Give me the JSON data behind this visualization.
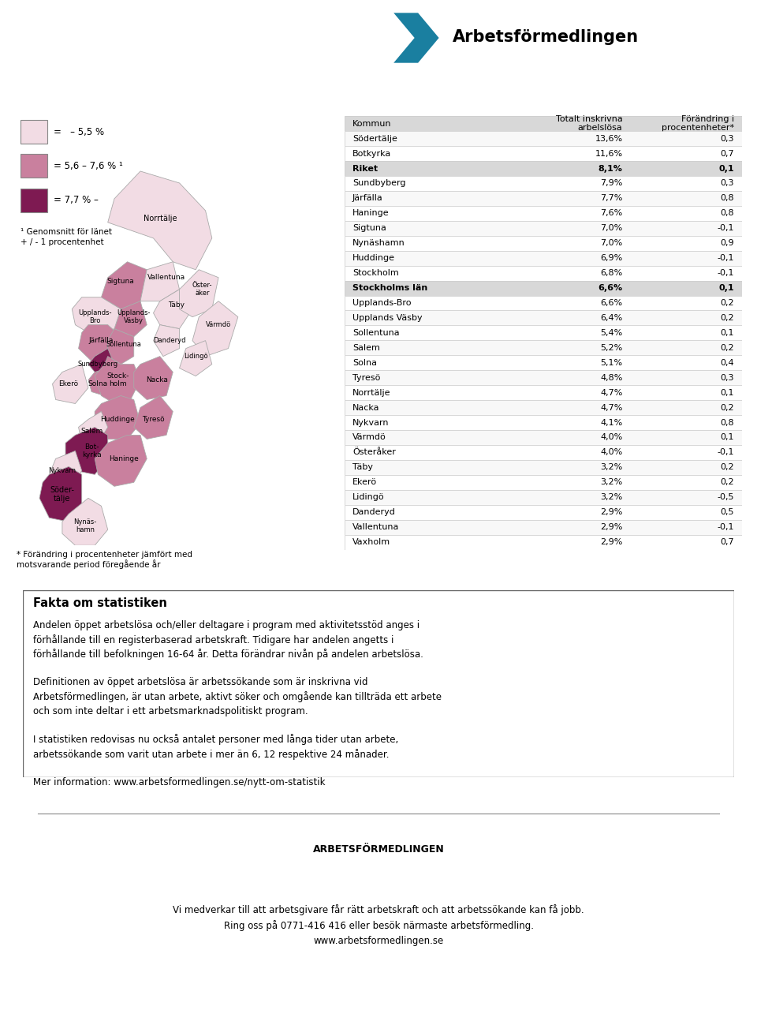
{
  "table_header": [
    "Kommun",
    "Totalt inskrivna\narbelslösa",
    "Förändring i\nprocentenheter*"
  ],
  "table_rows": [
    [
      "Södertälje",
      "13,6%",
      "0,3",
      false
    ],
    [
      "Botkyrka",
      "11,6%",
      "0,7",
      false
    ],
    [
      "Riket",
      "8,1%",
      "0,1",
      true
    ],
    [
      "Sundbyberg",
      "7,9%",
      "0,3",
      false
    ],
    [
      "Järfälla",
      "7,7%",
      "0,8",
      false
    ],
    [
      "Haninge",
      "7,6%",
      "0,8",
      false
    ],
    [
      "Sigtuna",
      "7,0%",
      "-0,1",
      false
    ],
    [
      "Nynäshamn",
      "7,0%",
      "0,9",
      false
    ],
    [
      "Huddinge",
      "6,9%",
      "-0,1",
      false
    ],
    [
      "Stockholm",
      "6,8%",
      "-0,1",
      false
    ],
    [
      "Stockholms län",
      "6,6%",
      "0,1",
      true
    ],
    [
      "Upplands-Bro",
      "6,6%",
      "0,2",
      false
    ],
    [
      "Upplands Väsby",
      "6,4%",
      "0,2",
      false
    ],
    [
      "Sollentuna",
      "5,4%",
      "0,1",
      false
    ],
    [
      "Salem",
      "5,2%",
      "0,2",
      false
    ],
    [
      "Solna",
      "5,1%",
      "0,4",
      false
    ],
    [
      "Tyresö",
      "4,8%",
      "0,3",
      false
    ],
    [
      "Norrtälje",
      "4,7%",
      "0,1",
      false
    ],
    [
      "Nacka",
      "4,7%",
      "0,2",
      false
    ],
    [
      "Nykvarn",
      "4,1%",
      "0,8",
      false
    ],
    [
      "Värmdö",
      "4,0%",
      "0,1",
      false
    ],
    [
      "Österåker",
      "4,0%",
      "-0,1",
      false
    ],
    [
      "Täby",
      "3,2%",
      "0,2",
      false
    ],
    [
      "Ekerö",
      "3,2%",
      "0,2",
      false
    ],
    [
      "Lidingö",
      "3,2%",
      "-0,5",
      false
    ],
    [
      "Danderyd",
      "2,9%",
      "0,5",
      false
    ],
    [
      "Vallentuna",
      "2,9%",
      "-0,1",
      false
    ],
    [
      "Vaxholm",
      "2,9%",
      "0,7",
      false
    ]
  ],
  "legend_colors": [
    "#f2dce4",
    "#c9809e",
    "#7e1a52"
  ],
  "legend_labels": [
    "=   – 5,5 %",
    "= 5,6 – 7,6 % ¹",
    "= 7,7 % –"
  ],
  "legend_note1": "¹ Genomsnitt för länet",
  "legend_note2": "+ / - 1 procentenhet",
  "map_note": "* Förändring i procentenheter jämfört med\nmotsvarande period föregående år",
  "facts_title": "Fakta om statistiken",
  "facts_lines": [
    "Andelen öppet arbetslösa och/eller deltagare i program med aktivitetsstöd anges i",
    "förhållande till en registerbaserad arbetskraft. Tidigare har andelen angetts i",
    "förhållande till befolkningen 16-64 år. Detta förändrar nivån på andelen arbetslösa.",
    "",
    "Definitionen av öppet arbetslösa är arbetssökande som är inskrivna vid",
    "Arbetsförmedlingen, är utan arbete, aktivt söker och omgående kan tillträda ett arbete",
    "och som inte deltar i ett arbetsmarknadspolitiskt program.",
    "",
    "I statistiken redovisas nu också antalet personer med långa tider utan arbete,",
    "arbetssökande som varit utan arbete i mer än 6, 12 respektive 24 månader.",
    "",
    "Mer information: www.arbetsformedlingen.se/nytt-om-statistik"
  ],
  "footer_bold": "ARBETSFÖRMEDLINGEN",
  "footer_line1": "Vi medverkar till att arbetsgivare får rätt arbetskraft och att arbetssökande kan få jobb.",
  "footer_line2": "Ring oss på 0771-416 416 eller besök närmaste arbetsförmedling.",
  "footer_line3": "www.arbetsformedlingen.se",
  "bg_color": "#ffffff",
  "table_row_alt": "#f0f0f0",
  "table_highlight": "#d8d8d8",
  "table_border": "#bbbbbb",
  "logo_text": "Arbetsförmedlingen",
  "logo_color": "#1a7fa0"
}
